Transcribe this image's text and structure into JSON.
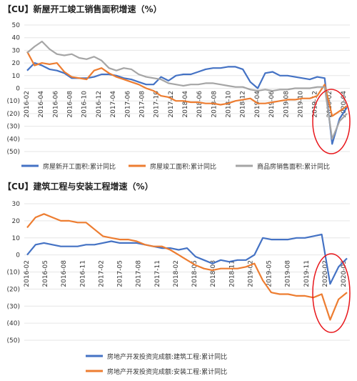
{
  "colors": {
    "blue": "#4472C4",
    "orange": "#ED7D31",
    "gray": "#A5A5A5",
    "red_ring": "#E8161B",
    "grid": "#E6E6E6"
  },
  "chart_data": [
    {
      "type": "line",
      "title": "【CU】新屋开工竣工销售面积增速（%）",
      "ylim": [
        -50,
        50
      ],
      "yticks": [
        "50",
        "40",
        "30",
        "20",
        "10",
        "0",
        "(10)",
        "(20)",
        "(30)",
        "(40)",
        "(50)"
      ],
      "ytick_values": [
        50,
        40,
        30,
        20,
        10,
        0,
        -10,
        -20,
        -30,
        -40,
        -50
      ],
      "x_tick_labels": [
        "2016-02",
        "2016-04",
        "2016-06",
        "2016-08",
        "2016-10",
        "2016-12",
        "2017-04",
        "2017-06",
        "2017-08",
        "2017-10",
        "2017-12",
        "2018-04",
        "2018-06",
        "2018-08",
        "2018-10",
        "2018-12",
        "2019-04",
        "2019-06",
        "2019-08",
        "2019-10",
        "2019-12",
        "2020-02",
        "2020-04"
      ],
      "legend_position": "bottom",
      "series": [
        {
          "name": "房屋新开工面积:累计同比",
          "color": "#4472C4",
          "values": [
            14,
            20,
            18,
            15,
            14,
            12,
            8,
            8,
            8,
            9,
            11,
            11,
            10,
            8,
            7,
            5,
            3,
            3,
            9,
            6,
            10,
            11,
            11,
            13,
            15,
            16,
            16,
            17,
            17,
            15,
            5,
            0,
            12,
            13,
            10,
            10,
            9,
            8,
            7,
            9,
            8,
            -44,
            -24,
            -15
          ]
        },
        {
          "name": "房屋竣工面积:累计同比",
          "color": "#ED7D31",
          "values": [
            29,
            18,
            20,
            19,
            20,
            13,
            9,
            8,
            7,
            14,
            16,
            12,
            9,
            7,
            5,
            3,
            0,
            -2,
            -6,
            -7,
            -10,
            -10,
            -11,
            -11,
            -12,
            -12,
            -13,
            -12,
            -10,
            -9,
            -8,
            -12,
            -12,
            -11,
            -10,
            -9,
            -9,
            -8,
            -8,
            -6,
            3,
            -22,
            -18,
            -14
          ]
        },
        {
          "name": "商品房销售面积:累计同比",
          "color": "#A5A5A5",
          "values": [
            28,
            33,
            37,
            31,
            27,
            26,
            27,
            24,
            23,
            25,
            22,
            16,
            14,
            16,
            15,
            11,
            9,
            8,
            7,
            4,
            3,
            2,
            3,
            3,
            4,
            4,
            3,
            2,
            1,
            1,
            -1,
            -2,
            -1,
            -2,
            -1,
            -1,
            0,
            0,
            0,
            1,
            1,
            -40,
            -26,
            -20
          ]
        }
      ]
    },
    {
      "type": "line",
      "title": "【CU】建筑工程与安装工程增速（%）",
      "ylim": [
        -50,
        30
      ],
      "yticks": [
        "30",
        "20",
        "10",
        "0",
        "(10)",
        "(20)",
        "(30)",
        "(40)",
        "(50)"
      ],
      "ytick_values": [
        30,
        20,
        10,
        0,
        -10,
        -20,
        -30,
        -40,
        -50
      ],
      "x_tick_labels": [
        "2016-02",
        "2016-05",
        "2016-08",
        "2016-11",
        "2017-02",
        "2017-05",
        "2017-08",
        "2017-11",
        "2018-02",
        "2018-05",
        "2018-08",
        "2018-11",
        "2019-02",
        "2019-05",
        "2019-08",
        "2019-11",
        "2020-02",
        "2020-05"
      ],
      "legend_position": "bottom",
      "series": [
        {
          "name": "房地产开发投资完成额:建筑工程:累计同比",
          "color": "#4472C4",
          "values": [
            0,
            6,
            7,
            6,
            5,
            5,
            5,
            6,
            6,
            7,
            8,
            7,
            7,
            7,
            6,
            5,
            4,
            4,
            3,
            4,
            -1,
            -3,
            -5,
            -3,
            -4,
            -3,
            -3,
            0,
            10,
            9,
            9,
            9,
            10,
            10,
            11,
            12,
            -17,
            -7,
            -2
          ]
        },
        {
          "name": "房地产开发投资完成额:安装工程:累计同比",
          "color": "#ED7D31",
          "values": [
            16,
            22,
            24,
            22,
            20,
            20,
            19,
            19,
            15,
            11,
            10,
            9,
            9,
            8,
            6,
            5,
            5,
            3,
            0,
            -3,
            -6,
            -8,
            -9,
            -8,
            -8,
            -8,
            -7,
            -5,
            -15,
            -22,
            -23,
            -23,
            -24,
            -24,
            -25,
            -23,
            -38,
            -26,
            -22
          ]
        }
      ]
    }
  ]
}
